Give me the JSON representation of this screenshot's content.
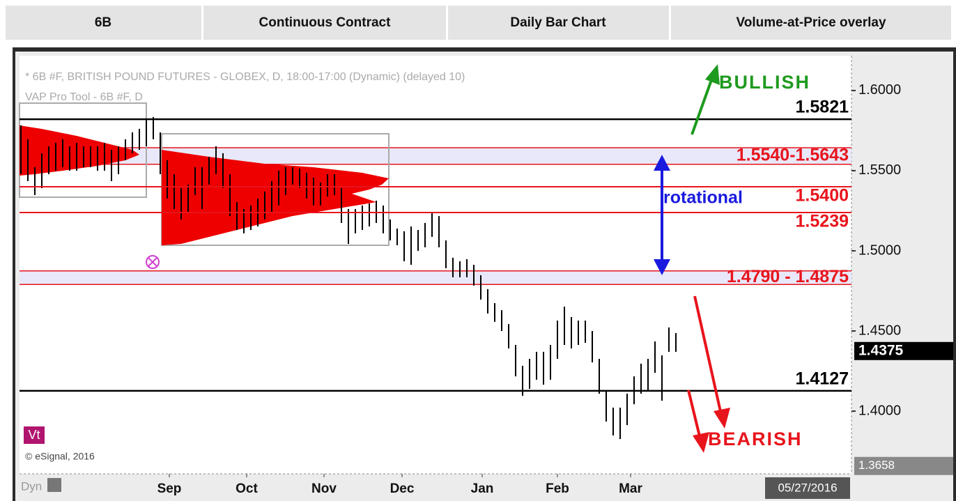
{
  "header": [
    "6B",
    "Continuous Contract",
    "Daily Bar Chart",
    "Volume-at-Price overlay"
  ],
  "chart_data": {
    "type": "hl_bar",
    "title": "* 6B #F, BRITISH POUND FUTURES - GLOBEX, D, 18:00-17:00 (Dynamic) (delayed 10)",
    "subtitle": "VAP Pro Tool - 6B #F, D",
    "credit": "© eSignal, 2016",
    "badge": "Vt",
    "mode": "Dyn",
    "date": "05/27/2016",
    "color": "#000000",
    "categories": [
      null,
      null,
      null,
      null,
      null,
      null,
      null,
      null,
      null,
      null,
      null,
      null,
      null,
      null,
      null,
      null,
      null,
      null,
      null,
      null,
      null,
      null,
      null,
      null,
      null,
      null,
      null,
      null,
      null,
      null,
      null,
      null,
      null,
      null,
      null,
      null,
      null,
      null,
      null,
      null,
      null,
      null,
      null,
      null,
      null,
      null,
      null,
      null,
      null,
      null,
      null,
      null,
      null,
      null,
      null,
      null,
      null,
      null,
      null,
      null,
      null,
      null,
      null,
      null,
      null,
      null,
      null,
      null,
      null,
      null,
      null,
      null,
      null,
      null,
      null,
      null,
      null,
      null,
      null,
      null,
      null,
      null,
      null,
      null,
      null,
      null,
      null,
      null,
      null,
      null,
      null,
      null,
      null,
      null,
      null
    ],
    "high": [
      1.5783,
      1.5696,
      1.5522,
      1.5609,
      1.5652,
      1.5674,
      1.5696,
      1.5652,
      1.5674,
      1.5652,
      1.5652,
      1.5652,
      1.5674,
      1.563,
      1.5652,
      1.5696,
      1.5739,
      1.5761,
      1.5826,
      1.5835,
      1.5739,
      1.5565,
      1.5478,
      1.5391,
      1.5413,
      1.5522,
      1.5522,
      1.5587,
      1.5652,
      1.5609,
      1.5478,
      1.5304,
      1.5261,
      1.5283,
      1.5326,
      1.537,
      1.5435,
      1.55,
      1.5522,
      1.5522,
      1.5513,
      1.5487,
      1.5457,
      1.5426,
      1.5478,
      1.5478,
      1.5391,
      1.5261,
      1.5261,
      1.5283,
      1.5296,
      1.5313,
      1.5283,
      1.5196,
      1.5139,
      1.5122,
      1.5152,
      1.513,
      1.5174,
      1.5239,
      1.5217,
      1.5065,
      1.4957,
      1.4935,
      1.4948,
      1.4913,
      1.4848,
      1.4761,
      1.4674,
      1.463,
      1.4543,
      1.4413,
      1.4283,
      1.4326,
      1.437,
      1.437,
      1.4413,
      1.4565,
      1.4652,
      1.4587,
      1.4565,
      1.4565,
      1.45,
      1.4326,
      1.413,
      1.4022,
      1.4022,
      1.4109,
      1.4217,
      1.4296,
      1.4326,
      1.4435,
      1.4348,
      1.4522,
      1.4487
    ],
    "low": [
      1.5478,
      1.5435,
      1.5348,
      1.5391,
      1.5478,
      1.55,
      1.5522,
      1.55,
      1.55,
      1.5522,
      1.5522,
      1.55,
      1.55,
      1.5435,
      1.5478,
      1.5565,
      1.5609,
      1.563,
      1.5652,
      1.5696,
      1.5478,
      1.5326,
      1.5261,
      1.5196,
      1.5239,
      1.5348,
      1.5261,
      1.5413,
      1.5478,
      1.5391,
      1.5217,
      1.513,
      1.5109,
      1.513,
      1.5152,
      1.5196,
      1.5239,
      1.5283,
      1.5348,
      1.5413,
      1.5391,
      1.5326,
      1.5283,
      1.5283,
      1.5339,
      1.5348,
      1.5174,
      1.5043,
      1.5109,
      1.513,
      1.5152,
      1.5174,
      1.5109,
      1.5065,
      1.5035,
      1.4935,
      1.4913,
      1.5,
      1.5022,
      1.5087,
      1.5022,
      1.4891,
      1.4835,
      1.4835,
      1.4835,
      1.4783,
      1.4696,
      1.4609,
      1.4557,
      1.45,
      1.4391,
      1.4217,
      1.4096,
      1.4139,
      1.4196,
      1.4165,
      1.4196,
      1.4326,
      1.4413,
      1.4391,
      1.4413,
      1.4426,
      1.4304,
      1.4109,
      1.3935,
      1.3848,
      1.3826,
      1.3913,
      1.4043,
      1.4109,
      1.413,
      1.4239,
      1.4065,
      1.437,
      1.437
    ],
    "xlim": [
      -0.2,
      119.2
    ],
    "xticks": [
      {
        "value": 21.3,
        "label": "Sep"
      },
      {
        "value": 32.4,
        "label": "Oct"
      },
      {
        "value": 43.5,
        "label": "Nov"
      },
      {
        "value": 54.7,
        "label": "Dec"
      },
      {
        "value": 66.2,
        "label": "Jan"
      },
      {
        "value": 77,
        "label": "Feb"
      },
      {
        "value": 87.5,
        "label": "Mar"
      }
    ],
    "ylim": [
      1.3609,
      1.6217
    ],
    "yticks": [
      {
        "value": 1.4,
        "label": "1.4000"
      },
      {
        "value": 1.45,
        "label": "1.4500"
      },
      {
        "value": 1.5,
        "label": "1.5000"
      },
      {
        "value": 1.55,
        "label": "1.5500"
      },
      {
        "value": 1.6,
        "label": "1.6000"
      }
    ],
    "levels": [
      {
        "value": 1.5821,
        "label": "1.5821",
        "color": "#000000"
      },
      {
        "value": 1.54,
        "label": "1.5400",
        "color": "#e8141c"
      },
      {
        "value": 1.5239,
        "label": "1.5239",
        "color": "#e8141c"
      },
      {
        "value": 1.4127,
        "label": "1.4127",
        "color": "#000000"
      }
    ],
    "zones": [
      {
        "low": 1.554,
        "high": 1.5643,
        "label": "1.5540-1.5643"
      },
      {
        "low": 1.479,
        "high": 1.4875,
        "label": "1.4790 - 1.4875"
      }
    ],
    "last_price": {
      "value": 1.4375,
      "label": "1.4375"
    },
    "low_price": {
      "value": 1.3658,
      "label": "1.3658"
    },
    "annotations": [
      {
        "text": "BULLISH",
        "color": "#1e9a1e"
      },
      {
        "text": "rotational",
        "color": "#1a1adf"
      },
      {
        "text": "BEARISH",
        "color": "#e8141c"
      }
    ]
  }
}
